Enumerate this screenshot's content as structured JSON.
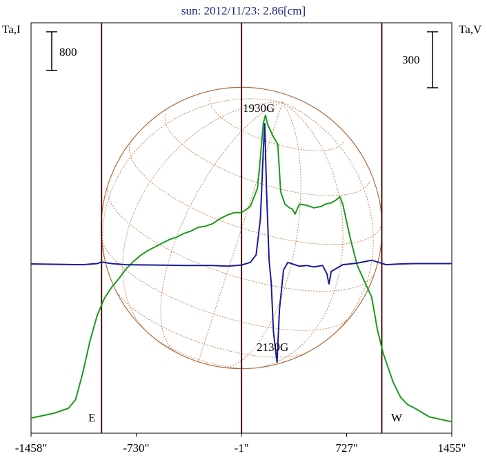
{
  "chart_data": {
    "type": "line",
    "title": "sun: 2012/11/23: 2.86[cm]",
    "y_left_label": "Ta,I",
    "y_right_label": "Ta,V",
    "scale_bar_left": "800",
    "scale_bar_right": "300",
    "xlim": [
      -1458,
      1455
    ],
    "x_ticks": [
      "-1458\"",
      "-730\"",
      "-1\"",
      "727\"",
      "1455\""
    ],
    "x_tick_values": [
      -1458,
      -730,
      -1,
      727,
      1455
    ],
    "limb_labels": {
      "east": "E",
      "west": "W"
    },
    "limb_positions": [
      -970,
      970
    ],
    "annotations": [
      {
        "text": "1930G",
        "x": 160,
        "series": "Ta,V",
        "kind": "max"
      },
      {
        "text": "2130G",
        "x": 245,
        "series": "Ta,V",
        "kind": "min"
      }
    ],
    "grid": false,
    "series": [
      {
        "name": "Ta,I",
        "color": "#1a9a1a",
        "points": [
          [
            -1458,
            0.05
          ],
          [
            -1300,
            0.09
          ],
          [
            -1200,
            0.13
          ],
          [
            -1150,
            0.2
          ],
          [
            -1100,
            0.42
          ],
          [
            -1050,
            0.68
          ],
          [
            -1000,
            0.89
          ],
          [
            -950,
            1.03
          ],
          [
            -900,
            1.12
          ],
          [
            -850,
            1.19
          ],
          [
            -800,
            1.27
          ],
          [
            -750,
            1.33
          ],
          [
            -700,
            1.38
          ],
          [
            -650,
            1.42
          ],
          [
            -600,
            1.45
          ],
          [
            -550,
            1.48
          ],
          [
            -500,
            1.51
          ],
          [
            -450,
            1.53
          ],
          [
            -400,
            1.56
          ],
          [
            -350,
            1.58
          ],
          [
            -300,
            1.61
          ],
          [
            -250,
            1.62
          ],
          [
            -200,
            1.64
          ],
          [
            -150,
            1.68
          ],
          [
            -100,
            1.71
          ],
          [
            -50,
            1.73
          ],
          [
            0,
            1.73
          ],
          [
            60,
            1.78
          ],
          [
            110,
            1.93
          ],
          [
            130,
            2.18
          ],
          [
            150,
            2.46
          ],
          [
            165,
            2.53
          ],
          [
            180,
            2.45
          ],
          [
            220,
            2.35
          ],
          [
            250,
            2.29
          ],
          [
            270,
            1.9
          ],
          [
            300,
            1.8
          ],
          [
            330,
            1.77
          ],
          [
            350,
            1.76
          ],
          [
            370,
            1.72
          ],
          [
            400,
            1.8
          ],
          [
            450,
            1.79
          ],
          [
            500,
            1.77
          ],
          [
            550,
            1.78
          ],
          [
            580,
            1.8
          ],
          [
            620,
            1.81
          ],
          [
            650,
            1.83
          ],
          [
            680,
            1.86
          ],
          [
            700,
            1.8
          ],
          [
            750,
            1.53
          ],
          [
            800,
            1.3
          ],
          [
            850,
            1.17
          ],
          [
            900,
            1.04
          ],
          [
            940,
            0.77
          ],
          [
            980,
            0.58
          ],
          [
            1050,
            0.34
          ],
          [
            1100,
            0.22
          ],
          [
            1150,
            0.16
          ],
          [
            1200,
            0.13
          ],
          [
            1300,
            0.06
          ],
          [
            1455,
            0.02
          ]
        ]
      },
      {
        "name": "Ta,V",
        "color": "#1a1a9a",
        "points": [
          [
            -1458,
            0.0
          ],
          [
            -1300,
            -0.005
          ],
          [
            -1100,
            -0.01
          ],
          [
            -1000,
            0.005
          ],
          [
            -970,
            0.025
          ],
          [
            -900,
            0.005
          ],
          [
            -800,
            -0.01
          ],
          [
            -600,
            -0.015
          ],
          [
            -400,
            -0.02
          ],
          [
            -200,
            -0.02
          ],
          [
            -100,
            -0.03
          ],
          [
            -1,
            -0.015
          ],
          [
            60,
            0.02
          ],
          [
            100,
            0.12
          ],
          [
            130,
            0.6
          ],
          [
            150,
            1.5
          ],
          [
            160,
            1.87
          ],
          [
            172,
            1.0
          ],
          [
            190,
            0.05
          ],
          [
            205,
            -0.25
          ],
          [
            220,
            -0.9
          ],
          [
            245,
            -1.31
          ],
          [
            262,
            -0.6
          ],
          [
            290,
            -0.08
          ],
          [
            320,
            0.02
          ],
          [
            400,
            -0.03
          ],
          [
            450,
            -0.02
          ],
          [
            500,
            -0.04
          ],
          [
            560,
            -0.02
          ],
          [
            590,
            -0.13
          ],
          [
            605,
            -0.27
          ],
          [
            620,
            -0.1
          ],
          [
            700,
            -0.01
          ],
          [
            800,
            0.01
          ],
          [
            900,
            0.05
          ],
          [
            950,
            0.02
          ],
          [
            1000,
            -0.01
          ],
          [
            1100,
            0.0
          ],
          [
            1200,
            0.005
          ],
          [
            1455,
            0.005
          ]
        ]
      }
    ]
  }
}
